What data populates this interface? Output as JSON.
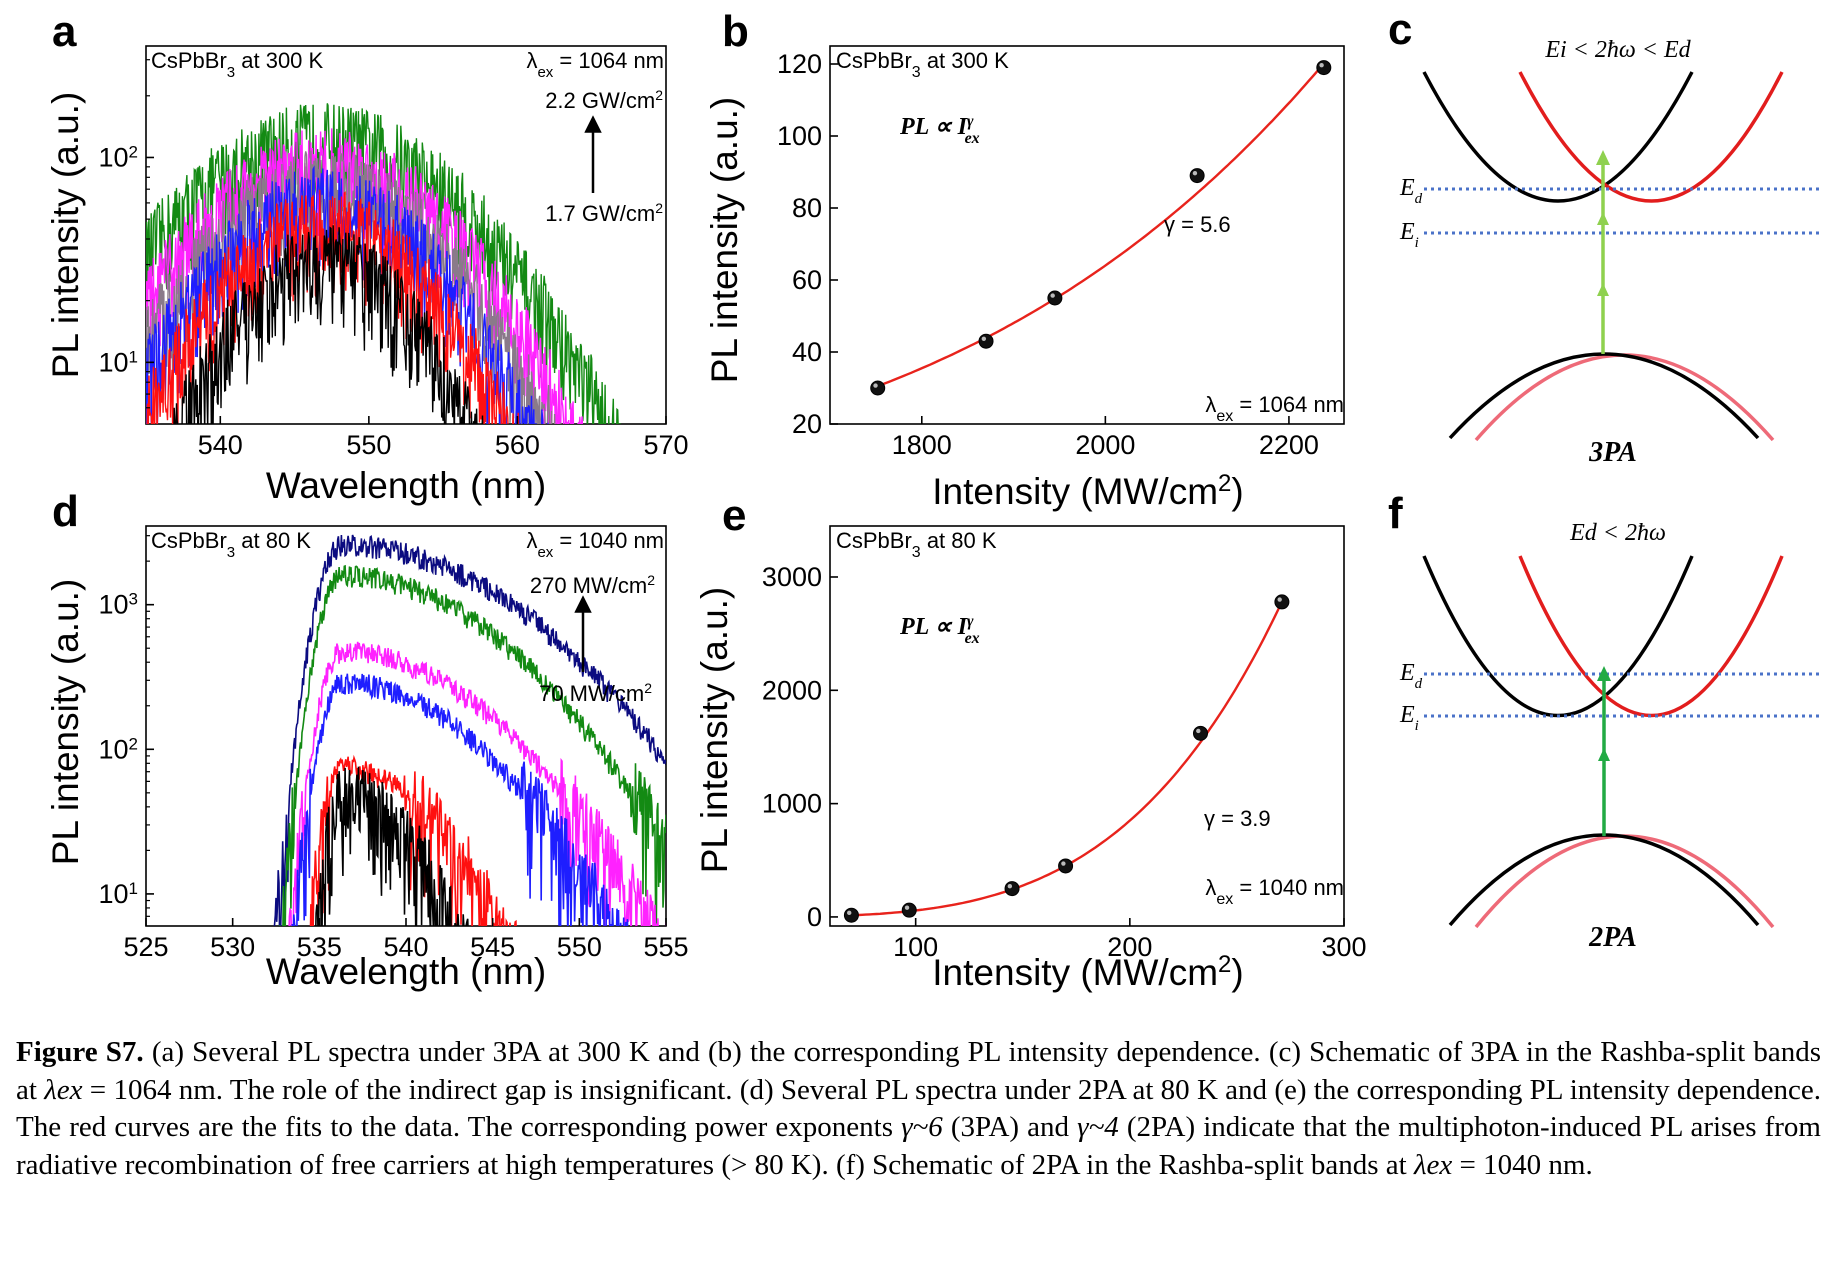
{
  "panels": {
    "a": {
      "label": "a",
      "material_pre": "CsPbBr",
      "material_sub": "3",
      "material_post": " at 300 K",
      "lambda_text_pre": "λ",
      "lambda_sub": "ex",
      "lambda_text_post": " = 1064 nm",
      "arrow_top_pre": "2.2 GW/cm",
      "arrow_top_sup": "2",
      "arrow_bottom_pre": "1.7 GW/cm",
      "arrow_bottom_sup": "2",
      "xlabel": "Wavelength (nm)",
      "ylabel": "PL intensity (a.u.)"
    },
    "b": {
      "label": "b",
      "material_pre": "CsPbBr",
      "material_sub": "3",
      "material_post": " at 300 K",
      "formula_pre": "PL ∝ I",
      "formula_sup": "γ",
      "formula_sub": "ex",
      "gamma_text": "γ = 5.6",
      "lambda_text_pre": "λ",
      "lambda_sub": "ex",
      "lambda_text_post": " = 1064 nm",
      "xlabel_pre": "Intensity (MW/cm",
      "xlabel_sup": "2",
      "xlabel_post": ")",
      "ylabel": "PL intensity (a.u.)"
    },
    "c": {
      "label": "c",
      "condition": "Ei < 2ħω < Ed",
      "Ed_label": "E",
      "Ed_sub": "d",
      "Ei_label": "E",
      "Ei_sub": "i",
      "process": "3PA"
    },
    "d": {
      "label": "d",
      "material_pre": "CsPbBr",
      "material_sub": "3",
      "material_post": " at 80 K",
      "lambda_text_pre": "λ",
      "lambda_sub": "ex",
      "lambda_text_post": " = 1040 nm",
      "arrow_top_pre": "270 MW/cm",
      "arrow_top_sup": "2",
      "arrow_bottom_pre": "70 MW/cm",
      "arrow_bottom_sup": "2",
      "xlabel": "Wavelength (nm)",
      "ylabel": "PL intensity (a.u.)"
    },
    "e": {
      "label": "e",
      "material_pre": "CsPbBr",
      "material_sub": "3",
      "material_post": " at 80 K",
      "formula_pre": "PL ∝ I",
      "formula_sup": "γ",
      "formula_sub": "ex",
      "gamma_text": "γ = 3.9",
      "lambda_text_pre": "λ",
      "lambda_sub": "ex",
      "lambda_text_post": " = 1040 nm",
      "xlabel_pre": "Intensity (MW/cm",
      "xlabel_sup": "2",
      "xlabel_post": ")",
      "ylabel": "PL intensity (a.u.)"
    },
    "f": {
      "label": "f",
      "condition": "Ed < 2ħω",
      "Ed_label": "E",
      "Ed_sub": "d",
      "Ei_label": "E",
      "Ei_sub": "i",
      "process": "2PA"
    }
  },
  "colors": {
    "red_fit": "#e8231c",
    "black": "#000000",
    "green_spec": "#138a13",
    "magenta": "#ff22ff",
    "blue": "#1e1eff",
    "red_spec": "#ff1010",
    "navy": "#0b0b80",
    "red_band": "#e21d1d",
    "pink_band": "#ee6a78",
    "dotted": "#4a72c8",
    "arrow_3pa": "#8fd14f",
    "arrow_2pa": "#22aa44"
  },
  "chart_data": [
    {
      "panel": "a",
      "type": "line",
      "x_range": [
        535,
        570
      ],
      "y_scale": "log",
      "y_range": [
        5,
        350
      ],
      "xticks": [
        540,
        550,
        560,
        570
      ],
      "yticks": [
        {
          "value": 10,
          "label": "10^1"
        },
        {
          "value": 100,
          "label": "10^2"
        }
      ],
      "series": [
        {
          "peak": 120,
          "color": "#138a13",
          "width": 10.5
        },
        {
          "peak": 90,
          "color": "#ff22ff",
          "width": 9.5
        },
        {
          "peak": 70,
          "color": "#8a7a8a",
          "width": 9
        },
        {
          "peak": 58,
          "color": "#1e1eff",
          "width": 8.5
        },
        {
          "peak": 45,
          "color": "#ff1010",
          "width": 8
        },
        {
          "peak": 30,
          "color": "#000000",
          "width": 7
        }
      ],
      "peak_wavelength": 547
    },
    {
      "panel": "b",
      "type": "scatter",
      "x_range": [
        1700,
        2260
      ],
      "y_range": [
        20,
        125
      ],
      "xticks": [
        1800,
        2000,
        2200
      ],
      "yticks": [
        20,
        40,
        60,
        80,
        100,
        120
      ],
      "points": [
        [
          1752,
          30
        ],
        [
          1870,
          43
        ],
        [
          1945,
          55
        ],
        [
          2100,
          89
        ],
        [
          2238,
          119
        ]
      ],
      "fit": {
        "exponent": 5.6,
        "x_ref": 1752,
        "y_ref": 30.5
      }
    },
    {
      "panel": "d",
      "type": "line",
      "x_range": [
        525,
        555
      ],
      "y_scale": "log",
      "y_range": [
        6,
        3500
      ],
      "xticks": [
        525,
        530,
        535,
        540,
        545,
        550,
        555
      ],
      "yticks": [
        {
          "value": 10,
          "label": "10^1"
        },
        {
          "value": 100,
          "label": "10^2"
        },
        {
          "value": 1000,
          "label": "10^3"
        }
      ],
      "series": [
        {
          "peak": 2600,
          "color": "#0b0b80",
          "width": 3.5,
          "tail": 9
        },
        {
          "peak": 1600,
          "color": "#138a13",
          "width": 3.3,
          "tail": 8
        },
        {
          "peak": 480,
          "color": "#ff22ff",
          "width": 3.2,
          "tail": 7.5
        },
        {
          "peak": 290,
          "color": "#1e1eff",
          "width": 3.1,
          "tail": 7
        },
        {
          "peak": 75,
          "color": "#ff1010",
          "width": 2.6,
          "tail": 5
        },
        {
          "peak": 45,
          "color": "#000000",
          "width": 2.2,
          "tail": 4
        }
      ],
      "peak_wavelength": 536.3
    },
    {
      "panel": "e",
      "type": "scatter",
      "x_range": [
        60,
        300
      ],
      "y_range": [
        -80,
        3450
      ],
      "xticks": [
        100,
        200,
        300
      ],
      "yticks": [
        0,
        1000,
        2000,
        3000
      ],
      "points": [
        [
          70,
          15
        ],
        [
          97,
          60
        ],
        [
          145,
          250
        ],
        [
          170,
          450
        ],
        [
          233,
          1620
        ],
        [
          271,
          2780
        ]
      ],
      "fit": {
        "exponent": 3.9,
        "x_ref": 271,
        "y_ref": 2780
      }
    }
  ],
  "caption": {
    "fig_label": "Figure S7.",
    "part1": " (a) Several PL spectra under 3PA at 300 K and (b) the corresponding PL intensity dependence. (c) Schematic of 3PA in the Rashba-split bands at ",
    "lambda1": "λex",
    "part2": " = 1064 nm. The role of the indirect gap is insignificant. (d) Several PL spectra under 2PA at 80 K and (e) the corresponding PL intensity dependence. The red curves are the fits to the data. The corresponding power exponents ",
    "gamma1": "γ~6",
    "part3": " (3PA) and ",
    "gamma2": "γ~4",
    "part4": " (2PA) indicate that the multiphoton-induced PL arises from radiative recombination of free carriers at high temperatures (> 80 K). (f) Schematic of 2PA in the Rashba-split bands at ",
    "lambda2": "λex",
    "part5": " = 1040 nm."
  }
}
